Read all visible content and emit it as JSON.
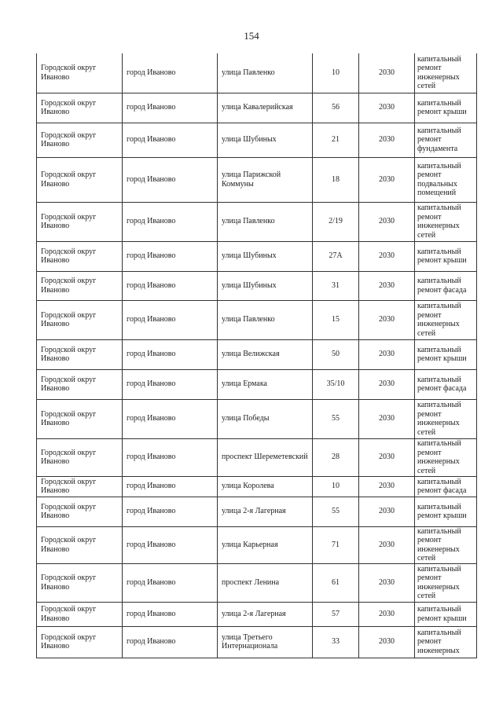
{
  "page_number": "154",
  "rows": [
    {
      "district": "Городской округ Иваново",
      "city": "город Иваново",
      "street": "улица Павленко",
      "house": "10",
      "year": "2030",
      "work": "капитальный ремонт инженерных сетей"
    },
    {
      "district": "Городской округ Иваново",
      "city": "город Иваново",
      "street": "улица Кавалерийская",
      "house": "56",
      "year": "2030",
      "work": "капитальный ремонт крыши"
    },
    {
      "district": "Городской округ Иваново",
      "city": "город Иваново",
      "street": "улица Шубиных",
      "house": "21",
      "year": "2030",
      "work": "капитальный ремонт фундамента"
    },
    {
      "district": "Городской округ Иваново",
      "city": "город Иваново",
      "street": "улица Парижской Коммуны",
      "house": "18",
      "year": "2030",
      "work": "капитальный ремонт подвальных помещений"
    },
    {
      "district": "Городской округ Иваново",
      "city": "город Иваново",
      "street": "улица Павленко",
      "house": "2/19",
      "year": "2030",
      "work": "капитальный ремонт инженерных сетей"
    },
    {
      "district": "Городской округ Иваново",
      "city": "город Иваново",
      "street": "улица Шубиных",
      "house": "27А",
      "year": "2030",
      "work": "капитальный ремонт крыши"
    },
    {
      "district": "Городской округ Иваново",
      "city": "город Иваново",
      "street": "улица Шубиных",
      "house": "31",
      "year": "2030",
      "work": "капитальный ремонт фасада"
    },
    {
      "district": "Городской округ Иваново",
      "city": "город Иваново",
      "street": "улица Павленко",
      "house": "15",
      "year": "2030",
      "work": "капитальный ремонт инженерных сетей"
    },
    {
      "district": "Городской округ Иваново",
      "city": "город Иваново",
      "street": "улица Велижская",
      "house": "50",
      "year": "2030",
      "work": "капитальный ремонт крыши"
    },
    {
      "district": "Городской округ Иваново",
      "city": "город Иваново",
      "street": "улица Ермака",
      "house": "35/10",
      "year": "2030",
      "work": "капитальный ремонт фасада"
    },
    {
      "district": "Городской округ Иваново",
      "city": "город Иваново",
      "street": "улица Победы",
      "house": "55",
      "year": "2030",
      "work": "капитальный ремонт инженерных сетей"
    },
    {
      "district": "Городской округ Иваново",
      "city": "город Иваново",
      "street": "проспект Шереметевский",
      "house": "28",
      "year": "2030",
      "work": "капитальный ремонт инженерных сетей"
    },
    {
      "district": "Городской округ Иваново",
      "city": "город Иваново",
      "street": "улица Королева",
      "house": "10",
      "year": "2030",
      "work": "капитальный ремонт фасада"
    },
    {
      "district": "Городской округ Иваново",
      "city": "город Иваново",
      "street": "улица 2-я Лагерная",
      "house": "55",
      "year": "2030",
      "work": "капитальный ремонт крыши"
    },
    {
      "district": "Городской округ Иваново",
      "city": "город Иваново",
      "street": "улица Карьерная",
      "house": "71",
      "year": "2030",
      "work": "капитальный ремонт инженерных сетей"
    },
    {
      "district": "Городской округ Иваново",
      "city": "город Иваново",
      "street": "проспект Ленина",
      "house": "61",
      "year": "2030",
      "work": "капитальный ремонт инженерных сетей"
    },
    {
      "district": "Городской округ Иваново",
      "city": "город Иваново",
      "street": "улица 2-я Лагерная",
      "house": "57",
      "year": "2030",
      "work": "капитальный ремонт крыши"
    },
    {
      "district": "Городской округ Иваново",
      "city": "город Иваново",
      "street": "улица Третьего Интернационала",
      "house": "33",
      "year": "2030",
      "work": "капитальный ремонт инженерных"
    }
  ]
}
